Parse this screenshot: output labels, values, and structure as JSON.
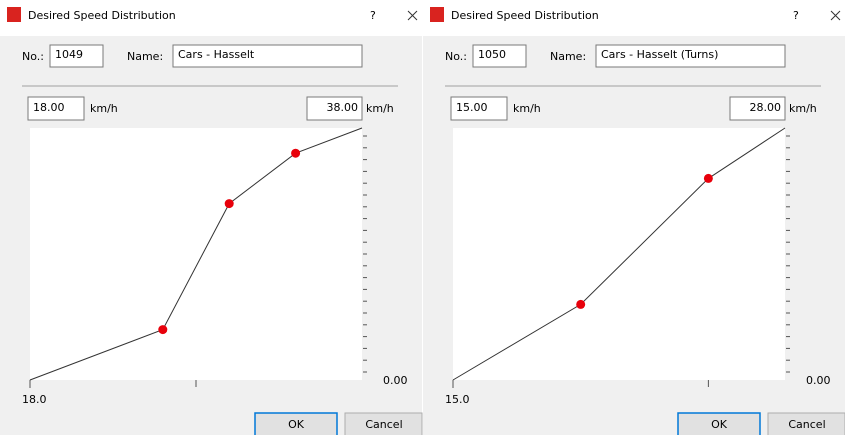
{
  "dialogs": [
    {
      "title": "Desired Speed Distribution",
      "help": "?",
      "no_label": "No.:",
      "no": "1049",
      "name_label": "Name:",
      "name": "Cars - Hasselt",
      "min": {
        "value": 18,
        "label": "18.00"
      },
      "max": {
        "value": 38,
        "label": "38.00"
      },
      "unit": "km/h",
      "ylim": [
        0,
        1
      ],
      "y_label": "0.00",
      "x_start_label": "18.0",
      "xtick": 28,
      "points": [
        {
          "speed": 18,
          "fraction": 0
        },
        {
          "speed": 26,
          "fraction": 0.2
        },
        {
          "speed": 30,
          "fraction": 0.7
        },
        {
          "speed": 34,
          "fraction": 0.9
        },
        {
          "speed": 38,
          "fraction": 1
        }
      ],
      "ok": "OK",
      "cancel": "Cancel"
    },
    {
      "title": "Desired Speed Distribution",
      "help": "?",
      "no_label": "No.:",
      "no": "1050",
      "name_label": "Name:",
      "name": "Cars - Hasselt (Turns)",
      "min": {
        "value": 15,
        "label": "15.00"
      },
      "max": {
        "value": 28,
        "label": "28.00"
      },
      "unit": "km/h",
      "ylim": [
        0,
        1
      ],
      "y_label": "0.00",
      "x_start_label": "15.0",
      "xtick": 25,
      "points": [
        {
          "speed": 15,
          "fraction": 0
        },
        {
          "speed": 20,
          "fraction": 0.3
        },
        {
          "speed": 25,
          "fraction": 0.8
        },
        {
          "speed": 28,
          "fraction": 1
        }
      ],
      "ok": "OK",
      "cancel": "Cancel"
    }
  ]
}
